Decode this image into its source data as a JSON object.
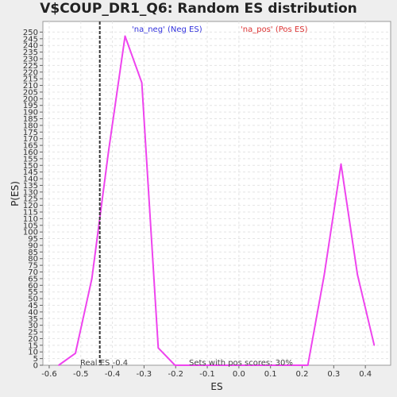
{
  "chart_data": {
    "type": "line",
    "title": "V$COUP_DR1_Q6: Random ES distribution",
    "xlabel": "ES",
    "ylabel": "P(ES)",
    "xlim": [
      -0.62,
      0.48
    ],
    "ylim": [
      0,
      258
    ],
    "xticks": [
      "-0.6",
      "-0.5",
      "-0.4",
      "-0.3",
      "-0.2",
      "-0.1",
      "0.0",
      "0.1",
      "0.2",
      "0.3",
      "0.4"
    ],
    "yticks": [
      "0",
      "5",
      "10",
      "15",
      "20",
      "25",
      "30",
      "35",
      "40",
      "45",
      "50",
      "55",
      "60",
      "65",
      "70",
      "75",
      "80",
      "85",
      "90",
      "95",
      "100",
      "105",
      "110",
      "115",
      "120",
      "125",
      "130",
      "135",
      "140",
      "145",
      "150",
      "155",
      "160",
      "165",
      "170",
      "175",
      "180",
      "185",
      "190",
      "195",
      "200",
      "205",
      "210",
      "215",
      "220",
      "225",
      "230",
      "235",
      "240",
      "245",
      "250"
    ],
    "grid": true,
    "series": [
      {
        "color": "#ee44ee",
        "x": [
          -0.57,
          -0.517,
          -0.465,
          -0.412,
          -0.36,
          -0.307,
          -0.255,
          -0.202,
          -0.15,
          -0.097,
          -0.045,
          0.008,
          0.06,
          0.113,
          0.165,
          0.218,
          0.27,
          0.323,
          0.375,
          0.428
        ],
        "y": [
          0,
          9,
          65,
          161,
          247,
          212,
          13,
          0,
          0,
          0,
          0,
          0,
          0,
          0,
          0,
          0,
          68,
          151,
          68,
          15
        ]
      }
    ],
    "vline": {
      "x": -0.44,
      "label": "Real ES -0.4",
      "color": "#333333"
    },
    "legend": [
      {
        "label": "'na_neg' (Neg ES)",
        "color": "#3333dd"
      },
      {
        "label": "'na_pos' (Pos ES)",
        "color": "#dd3333"
      }
    ],
    "note": "Sets with pos scores: 30%"
  }
}
